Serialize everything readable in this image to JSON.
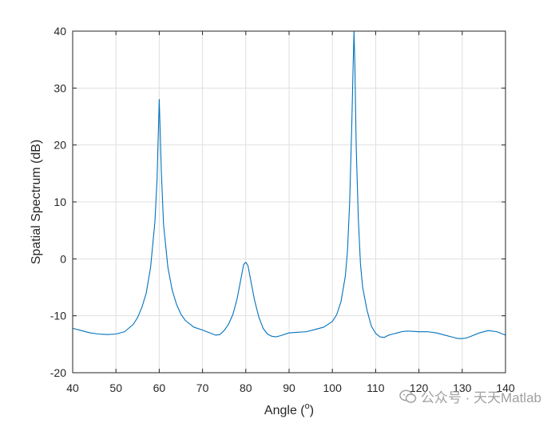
{
  "chart_data": {
    "type": "line",
    "title": "",
    "xlabel": "Angle (",
    "xlabel_superscript": "o",
    "xlabel_suffix": ")",
    "ylabel": "Spatial Spectrum (dB)",
    "xlim": [
      40,
      140
    ],
    "ylim": [
      -20,
      40
    ],
    "xticks": [
      40,
      50,
      60,
      70,
      80,
      90,
      100,
      110,
      120,
      130,
      140
    ],
    "yticks": [
      -20,
      -10,
      0,
      10,
      20,
      30,
      40
    ],
    "grid": true,
    "legend": "none",
    "series": [
      {
        "color": "#0072BD",
        "x": [
          40,
          42,
          44,
          46,
          48,
          50,
          52,
          54,
          55,
          56,
          57,
          58,
          59,
          59.5,
          60,
          60.5,
          61,
          62,
          63,
          64,
          65,
          66,
          68,
          70,
          72,
          73,
          74,
          75,
          76,
          77,
          78,
          79,
          79.5,
          80,
          80.5,
          81,
          82,
          83,
          84,
          85,
          86,
          87,
          88,
          90,
          92,
          94,
          96,
          98,
          100,
          101,
          102,
          103,
          103.5,
          104,
          104.5,
          104.8,
          105,
          105.2,
          105.5,
          106,
          106.5,
          107,
          108,
          109,
          110,
          111,
          112,
          113,
          114,
          115,
          116,
          117,
          118,
          120,
          122,
          124,
          126,
          128,
          129,
          130,
          131,
          132,
          134,
          136,
          138,
          140
        ],
        "y": [
          -12.2,
          -12.6,
          -13.0,
          -13.2,
          -13.3,
          -13.2,
          -12.8,
          -11.5,
          -10.3,
          -8.5,
          -6.0,
          -1.5,
          6.5,
          14.0,
          28.0,
          15.0,
          6.0,
          -1.5,
          -5.5,
          -8.0,
          -9.7,
          -10.8,
          -12.0,
          -12.5,
          -13.1,
          -13.4,
          -13.3,
          -12.6,
          -11.5,
          -9.8,
          -7.0,
          -3.0,
          -1.0,
          -0.6,
          -1.2,
          -3.2,
          -7.2,
          -10.2,
          -12.2,
          -13.2,
          -13.6,
          -13.7,
          -13.5,
          -13.0,
          -12.9,
          -12.8,
          -12.4,
          -12.0,
          -11.0,
          -9.8,
          -7.5,
          -3.0,
          1.5,
          10.0,
          24.0,
          34.0,
          40.0,
          34.0,
          20.0,
          7.0,
          -1.0,
          -5.0,
          -9.0,
          -11.8,
          -13.1,
          -13.7,
          -13.8,
          -13.4,
          -13.2,
          -13.0,
          -12.8,
          -12.7,
          -12.7,
          -12.8,
          -12.8,
          -13.0,
          -13.4,
          -13.8,
          -14.0,
          -14.0,
          -13.9,
          -13.6,
          -13.0,
          -12.6,
          -12.8,
          -13.4
        ]
      }
    ]
  },
  "watermark": {
    "text": "公众号 · 天天Matlab"
  }
}
